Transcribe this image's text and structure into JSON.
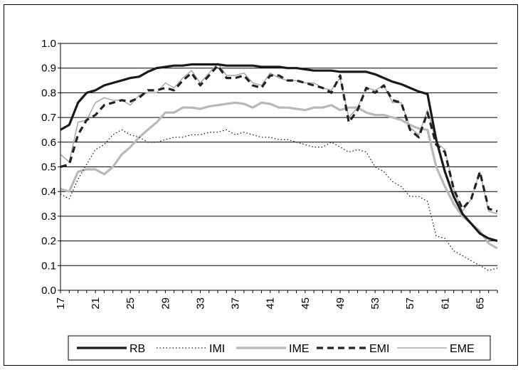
{
  "chart_data": {
    "type": "line",
    "title": "",
    "xlabel": "",
    "ylabel": "",
    "ylim": [
      0,
      1
    ],
    "yticks": [
      "0.0",
      "0.1",
      "0.2",
      "0.3",
      "0.4",
      "0.5",
      "0.6",
      "0.7",
      "0.8",
      "0.9",
      "1.0"
    ],
    "xlim": [
      17,
      67
    ],
    "xticks": [
      "17",
      "21",
      "25",
      "29",
      "33",
      "37",
      "41",
      "45",
      "49",
      "53",
      "57",
      "61",
      "65"
    ],
    "grid": "horizontal",
    "legend_position": "bottom",
    "x": [
      17,
      18,
      19,
      20,
      21,
      22,
      23,
      24,
      25,
      26,
      27,
      28,
      29,
      30,
      31,
      32,
      33,
      34,
      35,
      36,
      37,
      38,
      39,
      40,
      41,
      42,
      43,
      44,
      45,
      46,
      47,
      48,
      49,
      50,
      51,
      52,
      53,
      54,
      55,
      56,
      57,
      58,
      59,
      60,
      61,
      62,
      63,
      64,
      65,
      66,
      67
    ],
    "series": [
      {
        "name": "RB",
        "color": "#1a1a1a",
        "style": "solid-thick",
        "values": [
          0.65,
          0.67,
          0.76,
          0.8,
          0.81,
          0.83,
          0.84,
          0.85,
          0.86,
          0.865,
          0.885,
          0.9,
          0.905,
          0.91,
          0.91,
          0.915,
          0.915,
          0.915,
          0.915,
          0.91,
          0.91,
          0.91,
          0.91,
          0.905,
          0.905,
          0.905,
          0.9,
          0.9,
          0.895,
          0.89,
          0.89,
          0.89,
          0.885,
          0.885,
          0.885,
          0.885,
          0.875,
          0.86,
          0.845,
          0.835,
          0.82,
          0.805,
          0.795,
          0.61,
          0.48,
          0.38,
          0.31,
          0.27,
          0.23,
          0.21,
          0.2
        ]
      },
      {
        "name": "IMI",
        "color": "#1a1a1a",
        "style": "dotted",
        "values": [
          0.39,
          0.37,
          0.45,
          0.51,
          0.57,
          0.59,
          0.63,
          0.65,
          0.63,
          0.62,
          0.6,
          0.6,
          0.61,
          0.62,
          0.62,
          0.63,
          0.63,
          0.64,
          0.64,
          0.65,
          0.63,
          0.64,
          0.63,
          0.62,
          0.62,
          0.61,
          0.61,
          0.6,
          0.59,
          0.58,
          0.58,
          0.6,
          0.58,
          0.56,
          0.57,
          0.56,
          0.5,
          0.48,
          0.44,
          0.42,
          0.38,
          0.38,
          0.36,
          0.22,
          0.21,
          0.16,
          0.14,
          0.12,
          0.1,
          0.08,
          0.09
        ]
      },
      {
        "name": "IME",
        "color": "#b8b8b8",
        "style": "solid-thick",
        "values": [
          0.41,
          0.4,
          0.48,
          0.49,
          0.49,
          0.47,
          0.5,
          0.55,
          0.58,
          0.62,
          0.65,
          0.68,
          0.72,
          0.72,
          0.74,
          0.74,
          0.735,
          0.745,
          0.75,
          0.755,
          0.76,
          0.755,
          0.74,
          0.76,
          0.755,
          0.74,
          0.74,
          0.735,
          0.73,
          0.74,
          0.74,
          0.75,
          0.73,
          0.74,
          0.74,
          0.72,
          0.71,
          0.71,
          0.7,
          0.69,
          0.67,
          0.655,
          0.65,
          0.5,
          0.42,
          0.35,
          0.3,
          0.27,
          0.24,
          0.19,
          0.17
        ]
      },
      {
        "name": "EMI",
        "color": "#222222",
        "style": "dashed",
        "values": [
          0.5,
          0.51,
          0.63,
          0.69,
          0.71,
          0.75,
          0.76,
          0.77,
          0.765,
          0.78,
          0.81,
          0.81,
          0.82,
          0.81,
          0.85,
          0.88,
          0.83,
          0.87,
          0.91,
          0.86,
          0.86,
          0.87,
          0.83,
          0.82,
          0.87,
          0.87,
          0.85,
          0.85,
          0.84,
          0.83,
          0.82,
          0.8,
          0.87,
          0.68,
          0.73,
          0.82,
          0.8,
          0.83,
          0.77,
          0.76,
          0.65,
          0.62,
          0.72,
          0.59,
          0.56,
          0.41,
          0.33,
          0.37,
          0.48,
          0.33,
          0.32
        ]
      },
      {
        "name": "EME",
        "color": "#a8a8a8",
        "style": "solid-thin",
        "values": [
          0.55,
          0.52,
          0.68,
          0.69,
          0.76,
          0.78,
          0.77,
          0.77,
          0.75,
          0.79,
          0.8,
          0.8,
          0.84,
          0.82,
          0.86,
          0.89,
          0.84,
          0.88,
          0.92,
          0.87,
          0.87,
          0.88,
          0.84,
          0.83,
          0.88,
          0.86,
          0.85,
          0.85,
          0.84,
          0.84,
          0.82,
          0.81,
          0.86,
          0.7,
          0.74,
          0.82,
          0.81,
          0.83,
          0.76,
          0.76,
          0.66,
          0.63,
          0.73,
          0.6,
          0.57,
          0.41,
          0.32,
          0.37,
          0.48,
          0.32,
          0.31
        ]
      }
    ]
  }
}
